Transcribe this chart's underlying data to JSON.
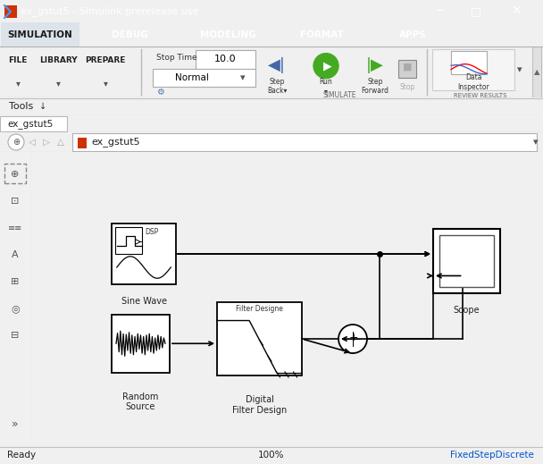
{
  "title": "ex_gstut5 - Simulink prerelease use",
  "tab_labels": [
    "SIMULATION",
    "DEBUG",
    "MODELING",
    "FORMAT",
    "APPS"
  ],
  "toolbar_items": [
    "FILE",
    "LIBRARY",
    "PREPARE"
  ],
  "stop_time_label": "Stop Time",
  "stop_time_value": "10.0",
  "mode_value": "Normal",
  "simulate_label": "SIMULATE",
  "review_results_label": "REVIEW RESULTS",
  "step_back_label": "Step\nBack",
  "run_label": "Run",
  "step_forward_label": "Step\nForward",
  "stop_label": "Stop",
  "data_inspector_label": "Data\nInspector",
  "tools_label": "Tools",
  "nav_label": "ex_gstut5",
  "ready_text": "Ready",
  "percent_text": "100%",
  "fixed_step_text": "FixedStepDiscrete",
  "title_bar_bg": "#1f4e78",
  "title_bar_fg": "#ffffff",
  "tab_bar_bg": "#1f4e78",
  "ribbon_bg": "#e8e8e8",
  "canvas_bg": "#ffffff",
  "status_bar_bg": "#f0f0f0",
  "left_toolbar_bg": "#e0e0e0",
  "tab_active_bg": "#f0f0f0",
  "tab_inactive_bg": "#1f4e78"
}
